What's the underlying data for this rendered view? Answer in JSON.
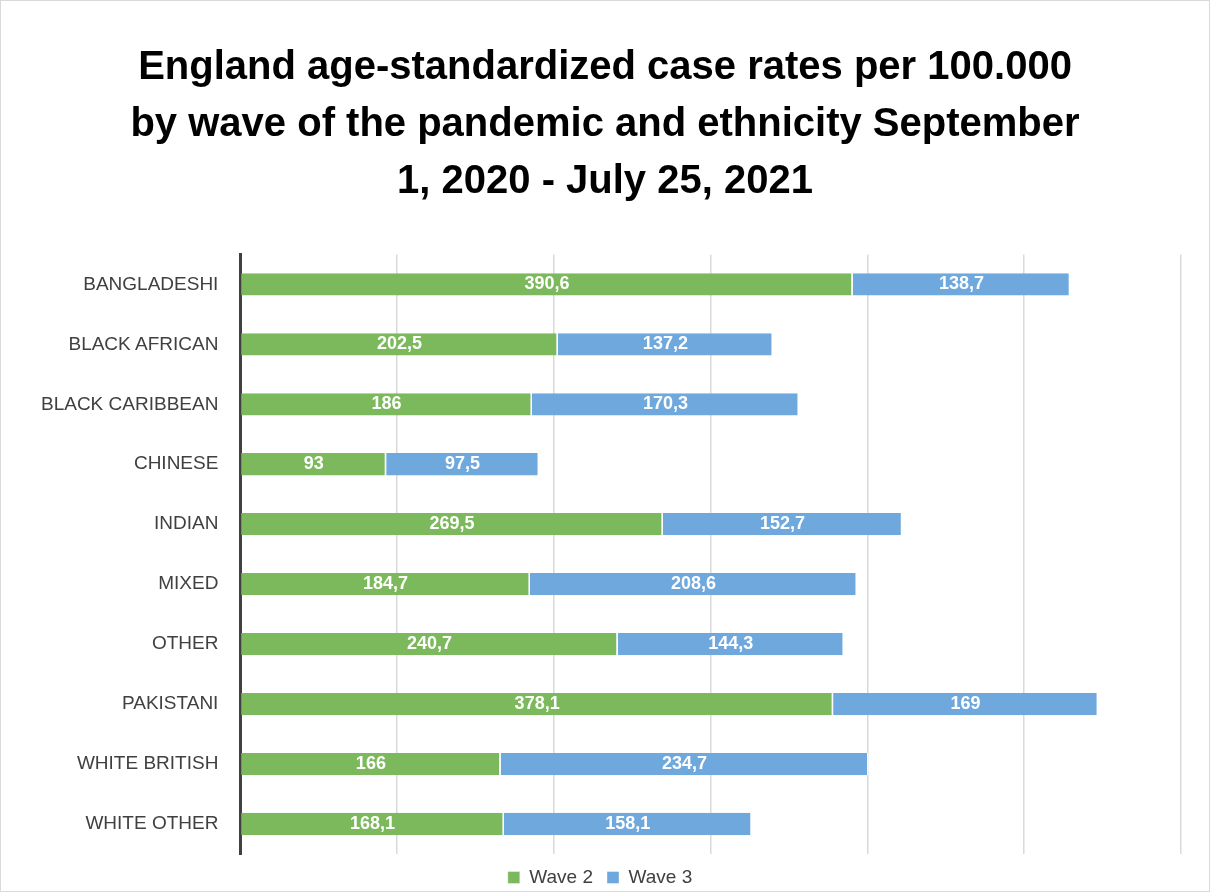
{
  "chart_data": {
    "type": "bar",
    "orientation": "horizontal",
    "stacked": true,
    "title": "England age-standardized case rates per 100.000 by wave of the pandemic and ethnicity September 1, 2020 - July 25, 2021",
    "categories": [
      "BANGLADESHI",
      "BLACK AFRICAN",
      "BLACK CARIBBEAN",
      "CHINESE",
      "INDIAN",
      "MIXED",
      "OTHER",
      "PAKISTANI",
      "WHITE BRITISH",
      "WHITE OTHER"
    ],
    "series": [
      {
        "name": "Wave 2",
        "color": "#7cb95c",
        "values": [
          390.6,
          202.5,
          186,
          93,
          269.5,
          184.7,
          240.7,
          378.1,
          166,
          168.1
        ],
        "value_labels": [
          "390,6",
          "202,5",
          "186",
          "93",
          "269,5",
          "184,7",
          "240,7",
          "378,1",
          "166",
          "168,1"
        ]
      },
      {
        "name": "Wave 3",
        "color": "#6fa8dc",
        "values": [
          138.7,
          137.2,
          170.3,
          97.5,
          152.7,
          208.6,
          144.3,
          169,
          234.7,
          158.1
        ],
        "value_labels": [
          "138,7",
          "137,2",
          "170,3",
          "97,5",
          "152,7",
          "208,6",
          "144,3",
          "169",
          "234,7",
          "158,1"
        ]
      }
    ],
    "xlim": [
      0,
      600
    ],
    "xticks": [
      {
        "value": 0,
        "label": null
      },
      {
        "value": 100,
        "label": null
      },
      {
        "value": 200,
        "label": null
      },
      {
        "value": 300,
        "label": null
      },
      {
        "value": 400,
        "label": null
      },
      {
        "value": 500,
        "label": null
      },
      {
        "value": 600,
        "label": null
      }
    ],
    "tick_labels": "y",
    "grid": "x",
    "legend": "bottom"
  }
}
